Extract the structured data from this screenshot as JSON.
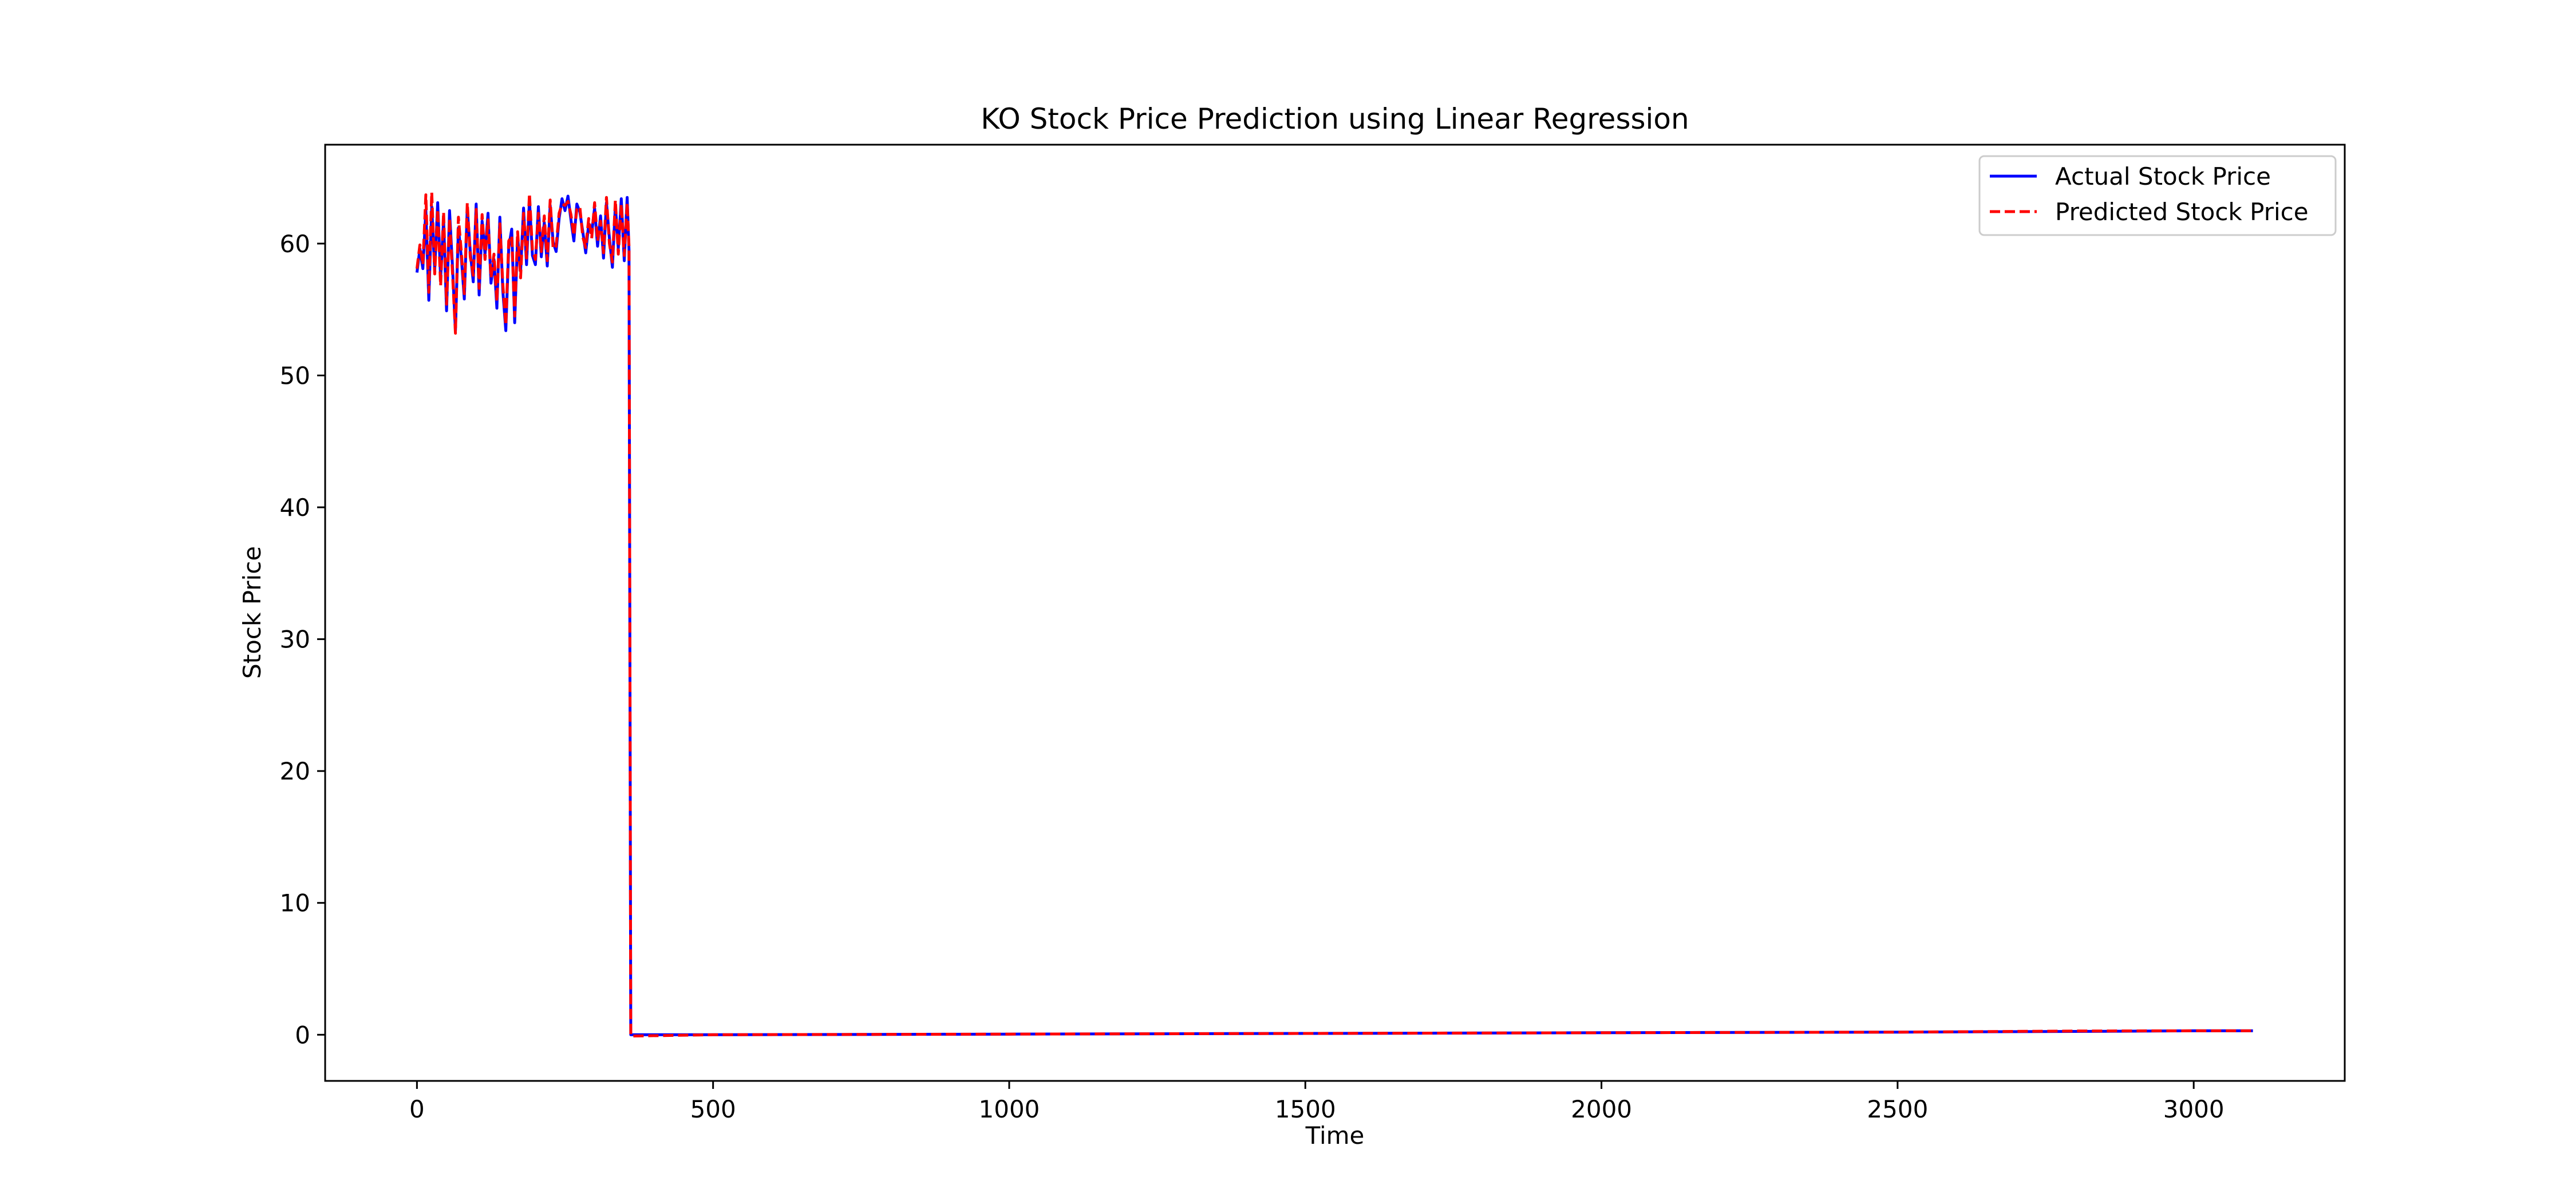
{
  "chart_data": {
    "type": "line",
    "title": "KO Stock Price Prediction using Linear Regression",
    "xlabel": "Time",
    "ylabel": "Stock Price",
    "xlim": [
      -155,
      3255
    ],
    "ylim": [
      -3.5,
      67.5
    ],
    "xticks": [
      0,
      500,
      1000,
      1500,
      2000,
      2500,
      3000
    ],
    "yticks": [
      0,
      10,
      20,
      30,
      40,
      50,
      60
    ],
    "grid": false,
    "legend": {
      "position": "top-right"
    },
    "series": [
      {
        "name": "Actual Stock Price",
        "color": "#0000ff",
        "style": "solid",
        "x": [
          0,
          5,
          10,
          15,
          20,
          25,
          30,
          35,
          40,
          45,
          50,
          55,
          60,
          65,
          70,
          75,
          80,
          85,
          90,
          95,
          100,
          105,
          110,
          115,
          120,
          125,
          130,
          135,
          140,
          145,
          150,
          155,
          160,
          165,
          170,
          175,
          180,
          185,
          190,
          195,
          200,
          205,
          210,
          215,
          220,
          225,
          230,
          235,
          240,
          245,
          250,
          255,
          260,
          265,
          270,
          275,
          280,
          285,
          290,
          295,
          300,
          305,
          310,
          315,
          320,
          325,
          330,
          335,
          340,
          345,
          350,
          355,
          358,
          361,
          500,
          1000,
          1500,
          2000,
          2500,
          2800,
          3000,
          3100
        ],
        "values": [
          57.8,
          59.6,
          58.1,
          62.5,
          55.7,
          62.8,
          58.0,
          63.1,
          57.4,
          61.8,
          54.9,
          62.5,
          58.3,
          53.4,
          61.2,
          58.9,
          55.8,
          62.7,
          59.4,
          57.1,
          63.0,
          56.1,
          61.7,
          59.2,
          62.3,
          57.0,
          58.8,
          55.1,
          62.0,
          56.4,
          53.4,
          59.7,
          61.1,
          54.0,
          60.5,
          57.9,
          62.7,
          58.4,
          63.3,
          59.1,
          58.4,
          62.8,
          59.0,
          61.6,
          58.3,
          62.9,
          60.1,
          59.4,
          61.9,
          63.4,
          62.5,
          63.6,
          61.8,
          60.2,
          63.0,
          62.4,
          60.9,
          59.3,
          61.5,
          60.8,
          62.7,
          59.8,
          62.1,
          58.9,
          63.1,
          60.4,
          58.2,
          62.9,
          59.6,
          63.4,
          58.7,
          63.5,
          59.5,
          0.0,
          0.0,
          0.05,
          0.1,
          0.15,
          0.2,
          0.25,
          0.3,
          0.3
        ]
      },
      {
        "name": "Predicted Stock Price",
        "color": "#ff0000",
        "style": "dashed",
        "x": [
          0,
          5,
          10,
          15,
          20,
          25,
          30,
          35,
          40,
          45,
          50,
          55,
          60,
          65,
          70,
          75,
          80,
          85,
          90,
          95,
          100,
          105,
          110,
          115,
          120,
          125,
          130,
          135,
          140,
          145,
          150,
          155,
          160,
          165,
          170,
          175,
          180,
          185,
          190,
          195,
          200,
          205,
          210,
          215,
          220,
          225,
          230,
          235,
          240,
          245,
          250,
          255,
          260,
          265,
          270,
          275,
          280,
          285,
          290,
          295,
          300,
          305,
          310,
          315,
          320,
          325,
          330,
          335,
          340,
          345,
          350,
          355,
          358,
          361,
          500,
          1000,
          1500,
          2000,
          2500,
          2800,
          3000,
          3100
        ],
        "values": [
          58.1,
          59.9,
          58.4,
          63.7,
          56.3,
          63.9,
          57.7,
          62.6,
          56.8,
          62.4,
          55.4,
          61.9,
          57.8,
          53.2,
          62.0,
          59.3,
          56.2,
          63.1,
          59.0,
          57.6,
          62.6,
          56.6,
          62.2,
          58.8,
          61.8,
          57.4,
          59.2,
          55.6,
          61.5,
          56.9,
          53.8,
          60.2,
          60.6,
          54.5,
          60.9,
          57.4,
          62.3,
          58.9,
          63.8,
          59.5,
          58.8,
          62.3,
          59.4,
          62.1,
          58.7,
          63.3,
          59.6,
          59.8,
          62.3,
          63.0,
          62.9,
          63.2,
          62.2,
          60.6,
          62.6,
          62.8,
          60.5,
          59.7,
          61.9,
          60.4,
          63.1,
          60.2,
          61.7,
          59.3,
          63.5,
          60.0,
          58.6,
          63.3,
          59.2,
          63.0,
          59.1,
          63.1,
          59.8,
          -0.1,
          0.0,
          0.05,
          0.1,
          0.15,
          0.2,
          0.28,
          0.3,
          0.3
        ]
      }
    ]
  }
}
